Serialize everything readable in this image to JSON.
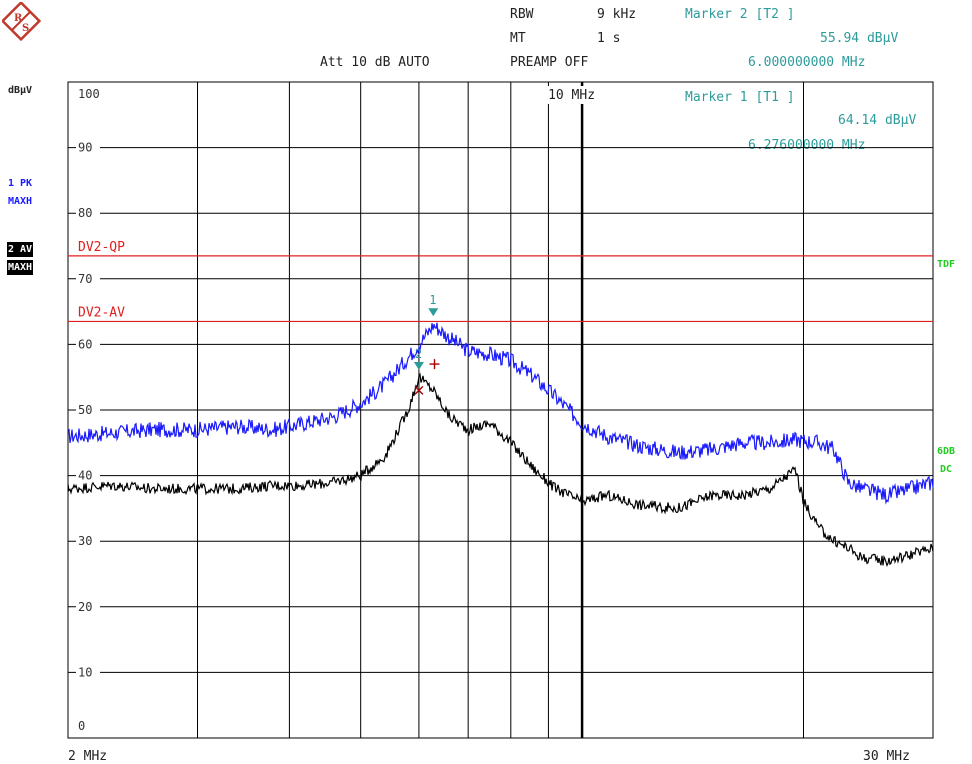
{
  "settings": {
    "rbw_label": "RBW",
    "rbw_value": "9 kHz",
    "mt_label": "MT",
    "mt_value": "1 s",
    "att": "Att 10 dB AUTO",
    "preamp": "PREAMP OFF"
  },
  "markers": {
    "m2_title": "Marker 2 [T2 ]",
    "m2_level": "55.94 dBµV",
    "m2_freq": "6.000000000 MHz",
    "m1_title": "Marker 1 [T1 ]",
    "m1_level": "64.14 dBµV",
    "m1_freq": "6.276000000 MHz"
  },
  "left_labels": {
    "unit": "dBµV",
    "trace1_id": "1 PK",
    "trace1_mode": "MAXH",
    "trace2_id": "2 AV",
    "trace2_mode": "MAXH"
  },
  "right_labels": {
    "tdf": "TDF",
    "db6": "6DB",
    "dc": "DC"
  },
  "colors": {
    "trace1": "#1a1aff",
    "trace2": "#000000",
    "limit": "#e02020",
    "grid": "#000000",
    "marker": "#2e9b9b",
    "status_green": "#22cc22"
  },
  "chart_data": {
    "type": "line",
    "x_scale": "log",
    "xlim": [
      2,
      30
    ],
    "ylim": [
      0,
      100
    ],
    "x_start_label": "2 MHz",
    "x_end_label": "30 MHz",
    "x_mid_label": "10 MHz",
    "y_ticks": [
      "100",
      "90",
      "80",
      "70",
      "60",
      "50",
      "40",
      "30",
      "20",
      "10",
      "0"
    ],
    "limit_lines": [
      {
        "name": "DV2-QP",
        "value": 73.5
      },
      {
        "name": "DV2-AV",
        "value": 63.5
      }
    ],
    "series": [
      {
        "name": "1 PK MAXH",
        "x": [
          2.0,
          2.3,
          2.6,
          3.0,
          3.4,
          3.8,
          4.2,
          4.6,
          5.0,
          5.4,
          5.8,
          6.0,
          6.28,
          6.6,
          7.0,
          7.5,
          8.0,
          8.6,
          9.2,
          10.0,
          10.8,
          12,
          13.5,
          15,
          16.5,
          18,
          19.5,
          21,
          22,
          23,
          24,
          26,
          28,
          30
        ],
        "values": [
          46,
          46.5,
          47,
          47,
          47.5,
          47,
          48,
          49,
          51,
          54,
          58,
          60,
          63,
          61,
          59,
          58.5,
          57.5,
          55,
          52,
          48,
          46,
          44.5,
          43.5,
          44,
          45,
          45,
          45.5,
          45,
          44,
          39,
          38,
          37,
          38,
          39
        ]
      },
      {
        "name": "2 AV MAXH",
        "x": [
          2.0,
          2.3,
          2.6,
          3.0,
          3.4,
          3.8,
          4.2,
          4.6,
          5.0,
          5.4,
          5.8,
          6.0,
          6.28,
          6.6,
          7.0,
          7.5,
          8.0,
          8.6,
          9.2,
          10.0,
          10.8,
          12,
          13.5,
          15,
          16.5,
          18,
          19.0,
          19.5,
          20,
          21,
          22,
          23,
          24,
          26,
          28,
          30
        ],
        "values": [
          38,
          38.5,
          38,
          38,
          38,
          38.5,
          38.5,
          39,
          40,
          43,
          50,
          55,
          53,
          49,
          47,
          48,
          45,
          41,
          38,
          36,
          37,
          35.5,
          35,
          37,
          37,
          38,
          40,
          41,
          36,
          32,
          30,
          29,
          27.5,
          27,
          28,
          29
        ]
      }
    ],
    "markers": [
      {
        "id": "1",
        "x": 6.276,
        "y": 64.14
      },
      {
        "id": "2",
        "x": 6.0,
        "y": 55.94
      }
    ]
  }
}
